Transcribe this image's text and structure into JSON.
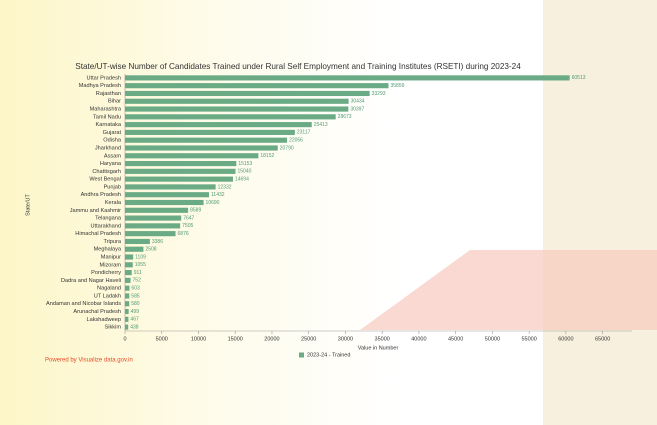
{
  "credit": "Powered by Visualize data.gov.in",
  "chart_data": {
    "type": "barh",
    "title": "State/UT-wise Number of Candidates Trained under Rural Self Employment and Training Institutes (RSETI) during 2023-24",
    "xlabel": "Value in Number",
    "ylabel": "State/UT",
    "categories": [
      "Uttar Pradesh",
      "Madhya Pradesh",
      "Rajasthan",
      "Bihar",
      "Maharashtra",
      "Tamil Nadu",
      "Karnataka",
      "Gujarat",
      "Odisha",
      "Jharkhand",
      "Assam",
      "Haryana",
      "Chattisgarh",
      "West Bengal",
      "Punjab",
      "Andhra Pradesh",
      "Kerala",
      "Jammu and Kashmir",
      "Telangana",
      "Uttarakhand",
      "Himachal Pradesh",
      "Tripura",
      "Meghalaya",
      "Manipur",
      "Mizoram",
      "Pondicherry",
      "Dadra and Nagar Haveli",
      "Nagaland",
      "UT Ladakh",
      "Andaman and Nicobar Islands",
      "Arunachal Pradesh",
      "Lakshadweep",
      "Sikkim"
    ],
    "series": [
      {
        "name": "2023-24 - Trained",
        "color": "#6aaa84",
        "values": [
          60513,
          35859,
          33293,
          30434,
          30397,
          28673,
          25413,
          23117,
          22056,
          20790,
          18152,
          15153,
          15040,
          14694,
          12332,
          11432,
          10690,
          8589,
          7647,
          7505,
          6876,
          3386,
          2508,
          1109,
          1055,
          911,
          752,
          603,
          585,
          580,
          499,
          467,
          438
        ]
      }
    ],
    "xlim": [
      0,
      69000
    ],
    "xticks": [
      0,
      5000,
      10000,
      15000,
      20000,
      25000,
      30000,
      35000,
      40000,
      45000,
      50000,
      55000,
      60000,
      65000
    ],
    "grid": false
  }
}
